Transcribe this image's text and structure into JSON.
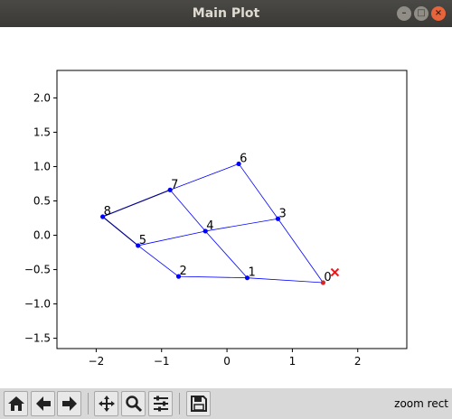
{
  "window": {
    "title": "Main Plot"
  },
  "toolbar": {
    "buttons": [
      {
        "name": "home-button",
        "icon": "home-icon"
      },
      {
        "name": "back-button",
        "icon": "arrow-left-icon"
      },
      {
        "name": "forward-button",
        "icon": "arrow-right-icon"
      },
      {
        "name": "pan-button",
        "icon": "move-icon"
      },
      {
        "name": "zoom-button",
        "icon": "magnifier-icon"
      },
      {
        "name": "configure-subplots-button",
        "icon": "sliders-icon"
      },
      {
        "name": "save-button",
        "icon": "floppy-disk-icon"
      }
    ],
    "status": "zoom rect"
  },
  "chart_data": {
    "type": "scatter",
    "xlim": [
      -2.6,
      2.75
    ],
    "ylim": [
      -1.65,
      2.4
    ],
    "xticks": [
      -2,
      -1,
      0,
      1,
      2
    ],
    "yticks": [
      -1.5,
      -1.0,
      -0.5,
      0.0,
      0.5,
      1.0,
      1.5,
      2.0
    ],
    "xtick_labels": [
      "−2",
      "−1",
      "0",
      "1",
      "2"
    ],
    "ytick_labels": [
      "−1.5",
      "−1.0",
      "−0.5",
      "0.0",
      "0.5",
      "1.0",
      "1.5",
      "2.0"
    ],
    "points": [
      {
        "label": "0",
        "x": 1.47,
        "y": -0.69,
        "color": "#d62728"
      },
      {
        "label": "1",
        "x": 0.31,
        "y": -0.62,
        "color": "#0000ff"
      },
      {
        "label": "2",
        "x": -0.74,
        "y": -0.6,
        "color": "#0000ff"
      },
      {
        "label": "3",
        "x": 0.78,
        "y": 0.24,
        "color": "#0000ff"
      },
      {
        "label": "4",
        "x": -0.33,
        "y": 0.06,
        "color": "#0000ff"
      },
      {
        "label": "5",
        "x": -1.36,
        "y": -0.15,
        "color": "#0000ff"
      },
      {
        "label": "6",
        "x": 0.18,
        "y": 1.04,
        "color": "#0000ff"
      },
      {
        "label": "7",
        "x": -0.87,
        "y": 0.66,
        "color": "#0000ff"
      },
      {
        "label": "8",
        "x": -1.9,
        "y": 0.27,
        "color": "#0000ff"
      }
    ],
    "edges": [
      [
        0,
        1
      ],
      [
        1,
        2
      ],
      [
        2,
        5
      ],
      [
        5,
        8
      ],
      [
        8,
        7
      ],
      [
        7,
        6
      ],
      [
        6,
        3
      ],
      [
        3,
        0
      ],
      [
        5,
        4
      ],
      [
        4,
        3
      ],
      [
        7,
        4
      ],
      [
        4,
        1
      ]
    ],
    "dark_edges": [
      [
        8,
        7
      ],
      [
        5,
        8
      ]
    ],
    "target": {
      "x": 1.65,
      "y": -0.54,
      "marker": "x",
      "color": "#e31a1c"
    },
    "line_color": "#0000ff",
    "grid": false
  }
}
